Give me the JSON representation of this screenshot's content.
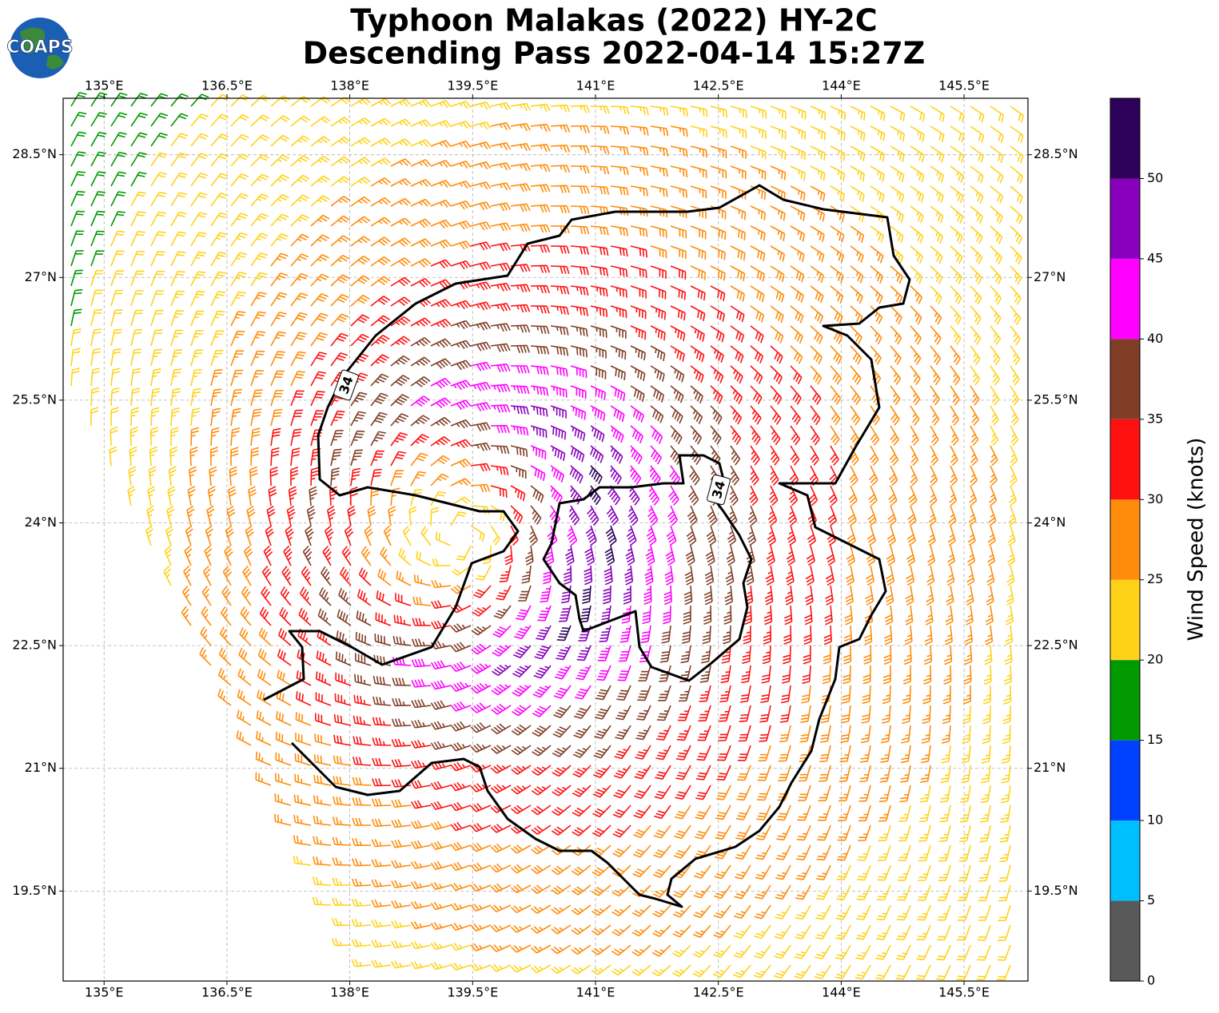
{
  "logo": {
    "text": "COAPS"
  },
  "chart_data": {
    "type": "barbs",
    "title": "Typhoon Malakas (2022) HY-2C",
    "subtitle": "Descending Pass 2022-04-14 15:27Z",
    "xlim": [
      134.5,
      146.28
    ],
    "ylim": [
      18.4,
      29.19
    ],
    "xticks": [
      {
        "value": 135,
        "label": "135°E"
      },
      {
        "value": 136.5,
        "label": "136.5°E"
      },
      {
        "value": 138,
        "label": "138°E"
      },
      {
        "value": 139.5,
        "label": "139.5°E"
      },
      {
        "value": 141,
        "label": "141°E"
      },
      {
        "value": 142.5,
        "label": "142.5°E"
      },
      {
        "value": 144,
        "label": "144°E"
      },
      {
        "value": 145.5,
        "label": "145.5°E"
      }
    ],
    "yticks": [
      {
        "value": 19.5,
        "label": "19.5°N"
      },
      {
        "value": 21,
        "label": "21°N"
      },
      {
        "value": 22.5,
        "label": "22.5°N"
      },
      {
        "value": 24,
        "label": "24°N"
      },
      {
        "value": 25.5,
        "label": "25.5°N"
      },
      {
        "value": 27,
        "label": "27°N"
      },
      {
        "value": 28.5,
        "label": "28.5°N"
      }
    ],
    "grid": true,
    "contour_labels": [
      "34",
      "34"
    ],
    "colorbar": {
      "label": "Wind Speed (knots)",
      "lim": [
        0,
        55
      ],
      "ticks": [
        0,
        5,
        10,
        15,
        20,
        25,
        30,
        35,
        40,
        45,
        50
      ],
      "colors": [
        "#595959",
        "#00bfff",
        "#0040ff",
        "#009900",
        "#ffd21a",
        "#ff8c0a",
        "#ff1010",
        "#803d26",
        "#ff00ff",
        "#8800bb",
        "#2d0059"
      ]
    }
  }
}
